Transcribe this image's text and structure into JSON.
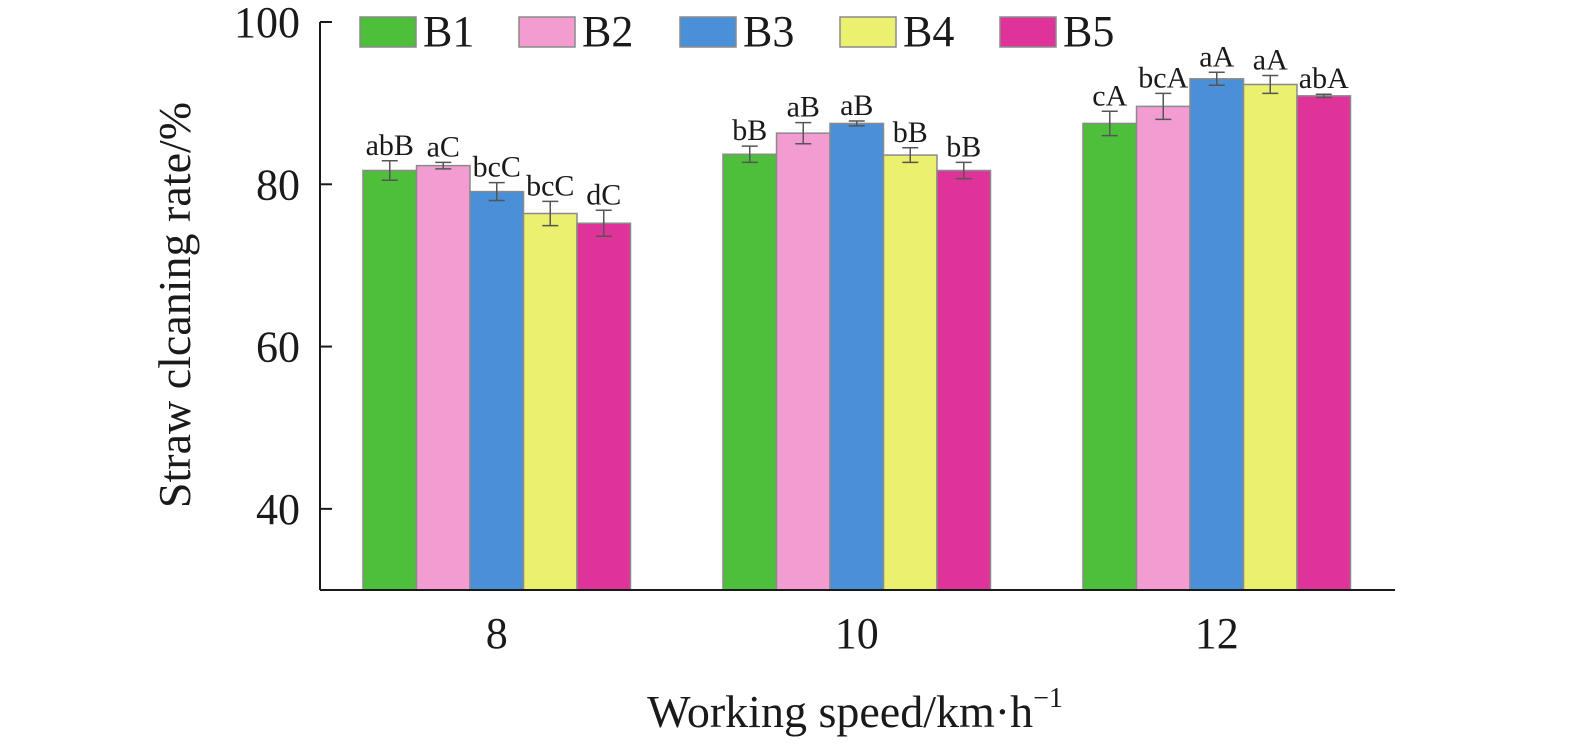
{
  "chart_data": {
    "type": "bar",
    "title": "",
    "xlabel": "Working speed/km·h",
    "xlabel_sup": "−1",
    "ylabel": "Straw clcaning rate/%",
    "ylim": [
      30,
      100
    ],
    "yticks": [
      40,
      60,
      80,
      100
    ],
    "categories": [
      "8",
      "10",
      "12"
    ],
    "legend_position": "top",
    "grid": false,
    "series": [
      {
        "name": "B1",
        "color": "#4dbf3a",
        "values": [
          81.7,
          83.7,
          87.5
        ],
        "errors": [
          1.2,
          1.0,
          1.5
        ],
        "labels": [
          "abB",
          "bB",
          "cA"
        ]
      },
      {
        "name": "B2",
        "color": "#f29cd2",
        "values": [
          82.3,
          86.3,
          89.6
        ],
        "errors": [
          0.4,
          1.3,
          1.6
        ],
        "labels": [
          "aC",
          "aB",
          "bcA"
        ]
      },
      {
        "name": "B3",
        "color": "#4a90d9",
        "values": [
          79.1,
          87.5,
          93.0
        ],
        "errors": [
          1.1,
          0.3,
          0.8
        ],
        "labels": [
          "bcC",
          "aB",
          "aA"
        ]
      },
      {
        "name": "B4",
        "color": "#ebf06e",
        "values": [
          76.4,
          83.6,
          92.3
        ],
        "errors": [
          1.5,
          0.9,
          1.1
        ],
        "labels": [
          "bcC",
          "bB",
          "aA"
        ]
      },
      {
        "name": "B5",
        "color": "#e0339a",
        "values": [
          75.2,
          81.7,
          90.9
        ],
        "errors": [
          1.6,
          1.0,
          0.2
        ],
        "labels": [
          "dC",
          "bB",
          "abA"
        ]
      }
    ]
  }
}
